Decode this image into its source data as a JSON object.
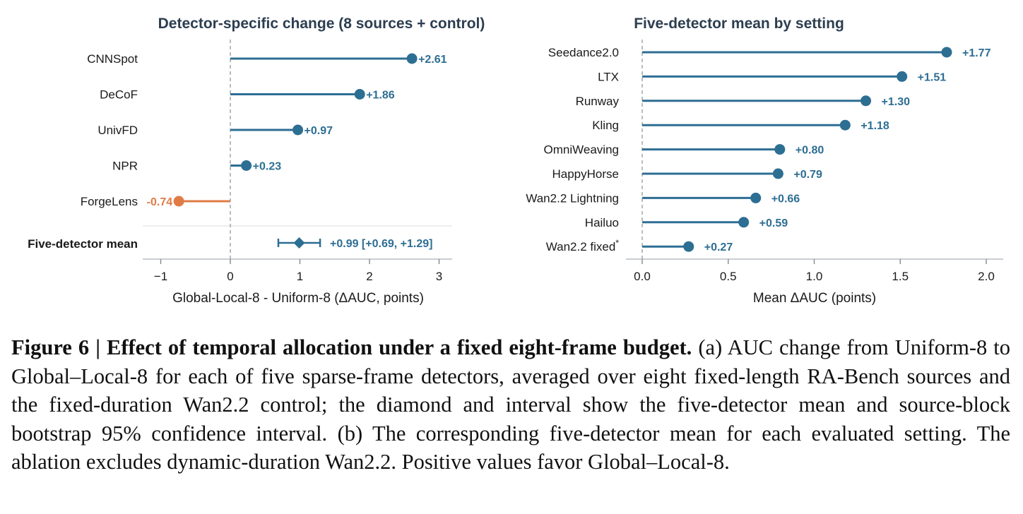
{
  "chart_data": [
    {
      "type": "lollipop",
      "title": "Detector-specific change (8 sources + control)",
      "xlabel": "Global-Local-8 - Uniform-8 (ΔAUC, points)",
      "xlim": [
        -1.25,
        3.2
      ],
      "xticks": [
        -1,
        0,
        1,
        2,
        3
      ],
      "xtick_labels": [
        "−1",
        "0",
        "1",
        "2",
        "3"
      ],
      "categories": [
        "CNNSpot",
        "DeCoF",
        "UnivFD",
        "NPR",
        "ForgeLens"
      ],
      "values": [
        2.61,
        1.86,
        0.97,
        0.23,
        -0.74
      ],
      "value_labels": [
        "+2.61",
        "+1.86",
        "+0.97",
        "+0.23",
        "-0.74"
      ],
      "summary": {
        "label": "Five-detector mean",
        "value": 0.99,
        "ci": [
          0.69,
          1.29
        ],
        "value_label": "+0.99 [+0.69, +1.29]"
      },
      "colors": {
        "positive": "#2d6e93",
        "negative": "#e07b45"
      },
      "grid": false
    },
    {
      "type": "lollipop",
      "title": "Five-detector mean by setting",
      "xlabel": "Mean ΔAUC (points)",
      "xlim": [
        -0.1,
        2.1
      ],
      "xticks": [
        0.0,
        0.5,
        1.0,
        1.5,
        2.0
      ],
      "xtick_labels": [
        "0.0",
        "0.5",
        "1.0",
        "1.5",
        "2.0"
      ],
      "categories": [
        "Seedance2.0",
        "LTX",
        "Runway",
        "Kling",
        "OmniWeaving",
        "HappyHorse",
        "Wan2.2 Lightning",
        "Hailuo",
        "Wan2.2 fixed*"
      ],
      "values": [
        1.77,
        1.51,
        1.3,
        1.18,
        0.8,
        0.79,
        0.66,
        0.59,
        0.27
      ],
      "value_labels": [
        "+1.77",
        "+1.51",
        "+1.30",
        "+1.18",
        "+0.80",
        "+0.79",
        "+0.66",
        "+0.59",
        "+0.27"
      ],
      "colors": {
        "positive": "#2d6e93"
      },
      "grid": false
    }
  ],
  "caption": {
    "figure_label": "Figure 6",
    "separator": " | ",
    "title": "Effect of temporal allocation under a fixed eight-frame budget.",
    "body": " (a) AUC change from Uniform-8 to Global–Local-8 for each of five sparse-frame detectors, averaged over eight fixed-length RA-Bench sources and the fixed-duration Wan2.2 control; the diamond and interval show the five-detector mean and source-block bootstrap 95% confidence interval. (b) The corresponding five-detector mean for each evaluated setting. The ablation excludes dynamic-duration Wan2.2. Positive values favor Global–Local-8."
  }
}
